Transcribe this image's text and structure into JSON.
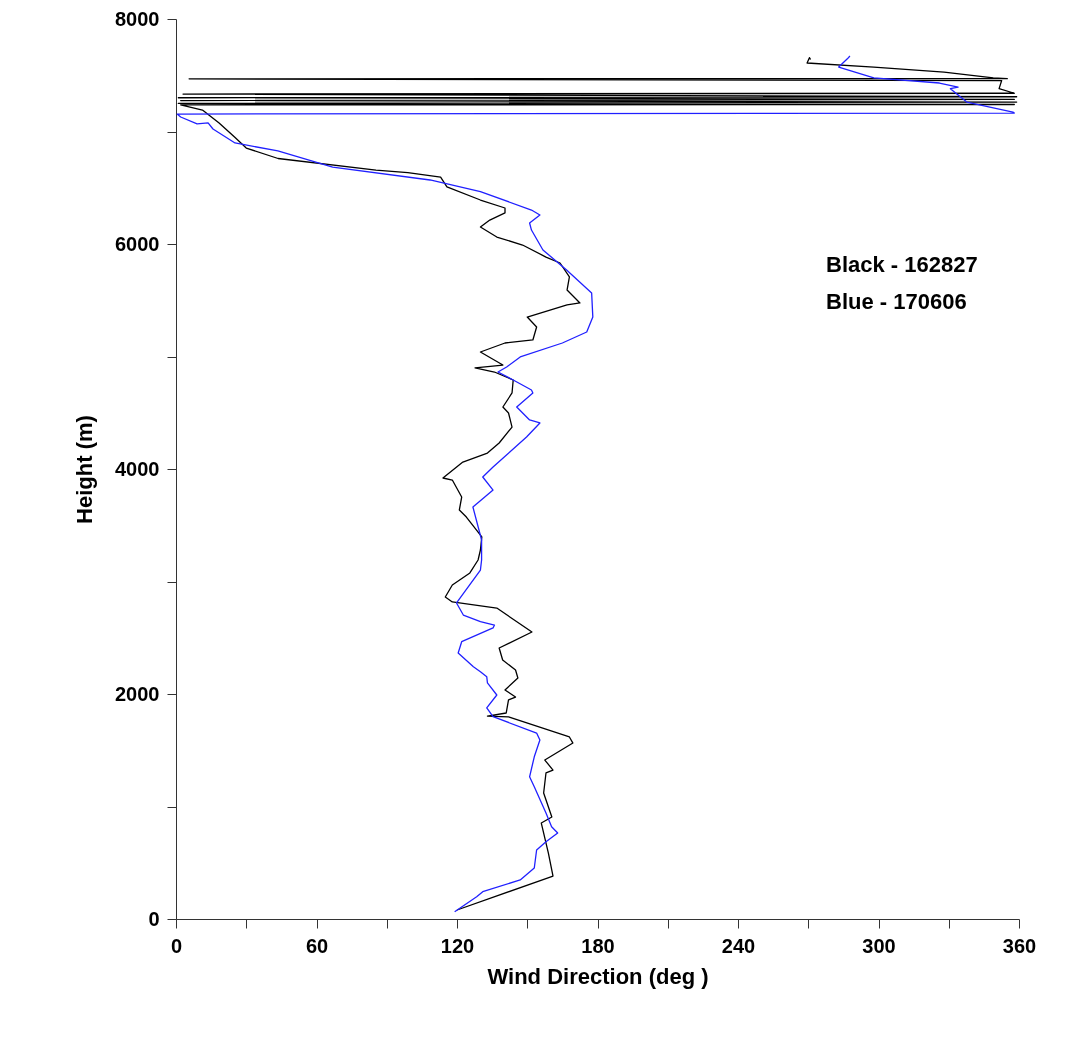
{
  "chart_data": {
    "type": "line",
    "xlabel": "Wind Direction (deg )",
    "ylabel": "Height (m)",
    "annotations": [
      "Black - 162827",
      "Blue - 170606"
    ],
    "xlim": [
      0,
      360
    ],
    "ylim": [
      0,
      8000
    ],
    "xticks": [
      0,
      {
        "value": 30,
        "label": null
      },
      60,
      {
        "value": 90,
        "label": null
      },
      120,
      {
        "value": 150,
        "label": null
      },
      180,
      {
        "value": 210,
        "label": null
      },
      240,
      {
        "value": 270,
        "label": null
      },
      300,
      {
        "value": 330,
        "label": null
      },
      360
    ],
    "yticks": [
      0,
      {
        "value": 1000,
        "label": null
      },
      2000,
      {
        "value": 3000,
        "label": null
      },
      4000,
      {
        "value": 5000,
        "label": null
      },
      6000,
      {
        "value": 7000,
        "label": null
      },
      8000
    ],
    "grid": false,
    "marker": "none",
    "line_style": "solid",
    "series": [
      {
        "color": "#000000",
        "x": [
          120,
          161,
          159,
          156,
          160.5,
          157,
          158,
          161,
          157.5,
          169.5,
          168,
          142,
          133,
          141,
          142,
          145,
          140.5,
          146,
          145,
          139.5,
          138,
          152,
          137,
          118,
          115,
          118,
          125.5,
          129,
          130,
          130.6,
          124,
          121,
          122,
          118,
          114,
          122.5,
          133,
          138,
          143.5,
          142,
          139.6,
          143.5,
          144,
          136,
          127.7,
          139.6,
          130,
          140.5,
          152.4,
          154,
          150,
          167,
          172.5,
          167,
          168,
          164,
          158,
          148,
          137,
          130,
          134,
          140.5,
          140.5,
          130,
          115.7,
          113,
          99,
          85.4,
          43.6,
          30,
          25,
          18.4,
          11.3,
          2,
          358,
          1,
          359,
          2,
          358,
          1,
          359,
          3,
          358,
          351.5,
          352.6,
          5.6,
          355,
          349,
          328,
          298,
          269.5,
          270.5,
          271
        ],
        "values": [
          80,
          382,
          587,
          853,
          907,
          1120,
          1298,
          1324,
          1413,
          1564,
          1618,
          1796,
          1804,
          1831,
          1947,
          1973,
          2036,
          2142,
          2213,
          2302,
          2409,
          2551,
          2764,
          2818,
          2862,
          2969,
          3076,
          3191,
          3280,
          3396,
          3573,
          3636,
          3751,
          3902,
          3920,
          4062,
          4142,
          4231,
          4373,
          4498,
          4551,
          4676,
          4791,
          4862,
          4898,
          4924,
          5040,
          5120,
          5147,
          5262,
          5351,
          5458,
          5476,
          5591,
          5707,
          5831,
          5884,
          5991,
          6062,
          6151,
          6213,
          6276,
          6320,
          6391,
          6507,
          6595,
          6635,
          6657,
          6760,
          6853,
          6951,
          7075,
          7191,
          7236,
          7240,
          7250,
          7262,
          7275,
          7285,
          7300,
          7309,
          7333,
          7340,
          7381,
          7453,
          7468,
          7470,
          7477,
          7527,
          7573,
          7609,
          7656,
          7640
        ]
      },
      {
        "color": "#2020ff",
        "x": [
          119,
          128.4,
          131,
          147,
          153,
          154,
          158,
          163,
          160.4,
          158,
          153,
          151,
          153,
          155.4,
          154,
          135.4,
          132.7,
          137,
          133,
          132.7,
          130,
          127,
          120.5,
          122,
          135.4,
          136,
          130,
          122.7,
          119.8,
          130,
          130.5,
          130.5,
          126.8,
          135.4,
          131,
          135.4,
          149.7,
          155.4,
          151,
          145.5,
          152.4,
          151.8,
          144,
          137.5,
          141.2,
          147,
          165,
          175.4,
          178,
          177.5,
          166.8,
          156.7,
          151.8,
          151,
          155.4,
          151.8,
          130,
          108.5,
          66.9,
          43.5,
          25.2,
          15.8,
          13.7,
          9,
          2,
          0.5,
          358,
          357.4,
          337.7,
          330.7,
          334,
          326,
          298,
          283,
          286.7,
          287.8
        ],
        "values": [
          65,
          198,
          243,
          347,
          453,
          613,
          687,
          764,
          820,
          942,
          1176,
          1264,
          1442,
          1591,
          1653,
          1798,
          1876,
          1991,
          2098,
          2154,
          2198,
          2242,
          2364,
          2465,
          2587,
          2613,
          2643,
          2702,
          2809,
          3102,
          3191,
          3369,
          3662,
          3813,
          3929,
          4018,
          4284,
          4409,
          4436,
          4551,
          4676,
          4702,
          4791,
          4862,
          4907,
          4996,
          5120,
          5218,
          5351,
          5564,
          5769,
          5947,
          6124,
          6187,
          6258,
          6302,
          6465,
          6569,
          6684,
          6827,
          6898,
          7022,
          7076,
          7067,
          7129,
          7155,
          7164,
          7173,
          7262,
          7381,
          7395,
          7431,
          7477,
          7573,
          7646,
          7671
        ]
      }
    ]
  }
}
